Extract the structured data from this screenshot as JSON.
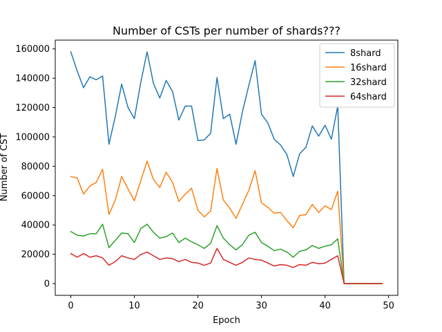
{
  "chart_data": {
    "type": "line",
    "title": "Number of CSTs per number of shards???",
    "xlabel": "Epoch",
    "ylabel": "Number of CST",
    "xlim": [
      -2.45,
      51.45
    ],
    "ylim": [
      -8000,
      166000
    ],
    "xticks": [
      0,
      10,
      20,
      30,
      40,
      50
    ],
    "yticks": [
      0,
      20000,
      40000,
      60000,
      80000,
      100000,
      120000,
      140000,
      160000
    ],
    "grid": false,
    "legend": "top-right",
    "x": [
      0,
      1,
      2,
      3,
      4,
      5,
      6,
      7,
      8,
      9,
      10,
      11,
      12,
      13,
      14,
      15,
      16,
      17,
      18,
      19,
      20,
      21,
      22,
      23,
      24,
      25,
      26,
      27,
      28,
      29,
      30,
      31,
      32,
      33,
      34,
      35,
      36,
      37,
      38,
      39,
      40,
      41,
      42,
      43,
      44,
      45,
      46,
      47,
      48,
      49
    ],
    "series": [
      {
        "name": "8shard",
        "color": "#1f77b4",
        "values": [
          158000,
          145000,
          133500,
          141000,
          139000,
          141500,
          95000,
          114000,
          136000,
          120000,
          112500,
          137000,
          158000,
          136500,
          126500,
          138500,
          131000,
          111500,
          121000,
          121000,
          97500,
          98000,
          102500,
          140500,
          112500,
          115500,
          95000,
          117000,
          135000,
          152000,
          115500,
          109500,
          98500,
          94500,
          88000,
          73000,
          88500,
          93000,
          107500,
          100500,
          108000,
          98500,
          121000,
          0,
          0,
          0,
          0,
          0,
          0,
          0
        ]
      },
      {
        "name": "16shard",
        "color": "#ff7f0e",
        "values": [
          73000,
          72000,
          61000,
          66500,
          69000,
          78000,
          47000,
          57000,
          73000,
          64500,
          56500,
          70000,
          83500,
          71000,
          65500,
          76000,
          69000,
          56000,
          61000,
          65000,
          50000,
          45500,
          49500,
          78500,
          57000,
          51500,
          44500,
          54000,
          63500,
          77000,
          55000,
          52000,
          48000,
          48500,
          43000,
          38000,
          46500,
          47000,
          54000,
          48500,
          53000,
          50500,
          63000,
          0,
          0,
          0,
          0,
          0,
          0,
          0
        ]
      },
      {
        "name": "32shard",
        "color": "#2ca02c",
        "values": [
          35500,
          33000,
          32500,
          34000,
          34000,
          40500,
          24500,
          29500,
          34500,
          34000,
          28000,
          37500,
          40500,
          35000,
          31000,
          32000,
          34500,
          28000,
          31000,
          28500,
          26500,
          24000,
          27500,
          39500,
          31000,
          26500,
          23000,
          26500,
          33000,
          35000,
          28000,
          25500,
          22500,
          23500,
          21500,
          18000,
          22000,
          23000,
          26000,
          24000,
          25500,
          26500,
          30500,
          0,
          0,
          0,
          0,
          0,
          0,
          0
        ]
      },
      {
        "name": "64shard",
        "color": "#d62728",
        "values": [
          20500,
          18000,
          20500,
          18000,
          19000,
          17500,
          12500,
          15000,
          19000,
          17500,
          16500,
          19800,
          21500,
          19000,
          16500,
          17500,
          17000,
          15000,
          16500,
          14500,
          14000,
          12500,
          14000,
          24000,
          16500,
          14500,
          12500,
          14500,
          17500,
          16500,
          16000,
          14000,
          12000,
          13000,
          12500,
          11000,
          13000,
          12500,
          14500,
          13500,
          14000,
          16500,
          19000,
          0,
          0,
          0,
          0,
          0,
          0,
          0
        ]
      }
    ]
  }
}
